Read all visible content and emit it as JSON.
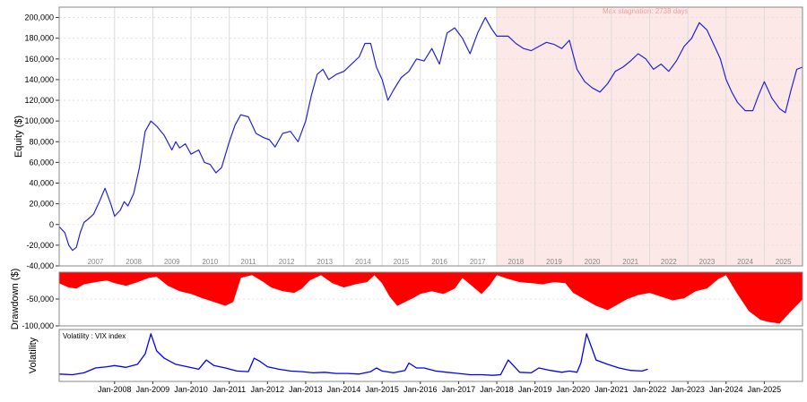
{
  "chart_data": [
    {
      "type": "line",
      "ylabel": "Equity ($)",
      "ylim": [
        -40000,
        210000
      ],
      "yticks": [
        -40000,
        -20000,
        0,
        20000,
        40000,
        60000,
        80000,
        100000,
        120000,
        140000,
        160000,
        180000,
        200000
      ],
      "ytick_labels": [
        "-40,000",
        "-20,000",
        "0",
        "20,000",
        "40,000",
        "60,000",
        "80,000",
        "100,000",
        "120,000",
        "140,000",
        "160,000",
        "180,000",
        "200,000"
      ],
      "year_labels": [
        "2007",
        "2008",
        "2009",
        "2010",
        "2011",
        "2012",
        "2013",
        "2014",
        "2015",
        "2016",
        "2017",
        "2018",
        "2019",
        "2020",
        "2021",
        "2022",
        "2023",
        "2024",
        "2025"
      ],
      "year_label_x": [
        2007.5,
        2008.5,
        2009.5,
        2010.5,
        2011.5,
        2012.5,
        2013.5,
        2014.5,
        2015.5,
        2016.5,
        2017.5,
        2018.5,
        2019.5,
        2020.5,
        2021.5,
        2022.5,
        2023.5,
        2024.5,
        2025.5
      ],
      "grid": true,
      "series": [
        {
          "color": "#2222dd",
          "x": [
            2006.55,
            2006.7,
            2006.8,
            2006.9,
            2007.0,
            2007.1,
            2007.2,
            2007.3,
            2007.45,
            2007.6,
            2007.75,
            2007.9,
            2008.0,
            2008.15,
            2008.25,
            2008.35,
            2008.5,
            2008.65,
            2008.8,
            2008.95,
            2009.1,
            2009.3,
            2009.5,
            2009.6,
            2009.7,
            2009.85,
            2010.0,
            2010.2,
            2010.35,
            2010.5,
            2010.65,
            2010.8,
            2011.0,
            2011.15,
            2011.3,
            2011.5,
            2011.7,
            2011.9,
            2012.05,
            2012.2,
            2012.4,
            2012.6,
            2012.8,
            2013.0,
            2013.15,
            2013.3,
            2013.45,
            2013.6,
            2013.8,
            2014.0,
            2014.2,
            2014.4,
            2014.55,
            2014.7,
            2014.85,
            2015.0,
            2015.15,
            2015.3,
            2015.5,
            2015.7,
            2015.9,
            2016.1,
            2016.3,
            2016.5,
            2016.7,
            2016.9,
            2017.1,
            2017.3,
            2017.5,
            2017.7,
            2017.85,
            2018.0,
            2018.15,
            2018.3,
            2018.5,
            2018.7,
            2018.9,
            2019.1,
            2019.3,
            2019.5,
            2019.7,
            2019.9,
            2020.1,
            2020.3,
            2020.5,
            2020.7,
            2020.9,
            2021.1,
            2021.3,
            2021.5,
            2021.7,
            2021.9,
            2022.1,
            2022.3,
            2022.5,
            2022.7,
            2022.9,
            2023.1,
            2023.3,
            2023.5,
            2023.7,
            2023.85,
            2024.0,
            2024.15,
            2024.3,
            2024.5,
            2024.7,
            2024.85,
            2025.0,
            2025.2,
            2025.4,
            2025.55,
            2025.7,
            2025.85,
            2026.0
          ],
          "y": [
            -2000,
            -8000,
            -20000,
            -25000,
            -22000,
            -8000,
            2000,
            5000,
            10000,
            22000,
            35000,
            20000,
            8000,
            14000,
            22000,
            18000,
            30000,
            55000,
            90000,
            100000,
            95000,
            86000,
            72000,
            80000,
            74000,
            78000,
            68000,
            72000,
            60000,
            58000,
            50000,
            55000,
            80000,
            96000,
            106000,
            104000,
            88000,
            84000,
            82000,
            75000,
            88000,
            90000,
            80000,
            100000,
            125000,
            145000,
            150000,
            140000,
            145000,
            148000,
            155000,
            162000,
            175000,
            175000,
            152000,
            140000,
            120000,
            130000,
            142000,
            148000,
            160000,
            158000,
            170000,
            155000,
            185000,
            190000,
            180000,
            165000,
            185000,
            200000,
            190000,
            182000,
            182000,
            182000,
            175000,
            170000,
            168000,
            172000,
            176000,
            174000,
            170000,
            178000,
            150000,
            138000,
            132000,
            128000,
            136000,
            148000,
            152000,
            158000,
            165000,
            160000,
            150000,
            155000,
            148000,
            158000,
            172000,
            180000,
            195000,
            188000,
            172000,
            160000,
            140000,
            128000,
            118000,
            110000,
            110000,
            125000,
            138000,
            122000,
            112000,
            108000,
            130000,
            150000,
            152000
          ]
        }
      ],
      "annotation": {
        "text": "Max stagnation: 2738 days",
        "x_start": 2018.0,
        "x_end": 2026.0,
        "fill": "#fde8e8"
      }
    },
    {
      "type": "area",
      "ylabel": "Drawdown ($)",
      "ylim": [
        -100000,
        0
      ],
      "yticks": [
        -50000,
        -100000
      ],
      "ytick_labels": [
        "-50,000",
        "-100,000"
      ],
      "series": [
        {
          "color": "#ff0000",
          "x": [
            2006.55,
            2006.8,
            2007.0,
            2007.2,
            2007.5,
            2007.8,
            2008.0,
            2008.3,
            2008.6,
            2008.9,
            2009.1,
            2009.4,
            2009.7,
            2010.0,
            2010.3,
            2010.6,
            2010.9,
            2011.1,
            2011.3,
            2011.6,
            2011.9,
            2012.1,
            2012.4,
            2012.7,
            2012.9,
            2013.1,
            2013.4,
            2013.7,
            2014.0,
            2014.3,
            2014.6,
            2014.8,
            2015.0,
            2015.2,
            2015.4,
            2015.6,
            2015.8,
            2016.0,
            2016.3,
            2016.6,
            2016.9,
            2017.1,
            2017.3,
            2017.6,
            2017.8,
            2018.0,
            2018.3,
            2018.6,
            2018.9,
            2019.2,
            2019.5,
            2019.8,
            2020.0,
            2020.3,
            2020.6,
            2020.9,
            2021.1,
            2021.4,
            2021.7,
            2022.0,
            2022.3,
            2022.6,
            2022.9,
            2023.2,
            2023.5,
            2023.8,
            2024.0,
            2024.3,
            2024.6,
            2024.9,
            2025.1,
            2025.4,
            2025.7,
            2026.0
          ],
          "y": [
            -20000,
            -28000,
            -30000,
            -22000,
            -18000,
            -15000,
            -20000,
            -25000,
            -18000,
            -10000,
            -8000,
            -25000,
            -35000,
            -40000,
            -48000,
            -55000,
            -62000,
            -55000,
            -10000,
            -5000,
            -18000,
            -28000,
            -35000,
            -38000,
            -30000,
            -15000,
            -5000,
            -20000,
            -28000,
            -22000,
            -18000,
            -5000,
            -20000,
            -45000,
            -62000,
            -55000,
            -48000,
            -40000,
            -35000,
            -40000,
            -30000,
            -10000,
            -22000,
            -40000,
            -25000,
            -5000,
            -12000,
            -18000,
            -20000,
            -22000,
            -18000,
            -20000,
            -38000,
            -50000,
            -62000,
            -70000,
            -62000,
            -50000,
            -42000,
            -38000,
            -45000,
            -52000,
            -48000,
            -35000,
            -30000,
            -12000,
            -5000,
            -40000,
            -72000,
            -88000,
            -92000,
            -95000,
            -72000,
            -50000
          ]
        }
      ]
    },
    {
      "type": "line",
      "ylabel": "Volatility",
      "title": "Volatility : VIX index",
      "ylim": [
        0,
        85
      ],
      "xtick_labels": [
        "Jan-2008",
        "Jan-2009",
        "Jan-2010",
        "Jan-2011",
        "Jan-2012",
        "Jan-2013",
        "Jan-2014",
        "Jan-2015",
        "Jan-2016",
        "Jan-2017",
        "Jan-2018",
        "Jan-2019",
        "Jan-2020",
        "Jan-2021",
        "Jan-2022",
        "Jan-2023",
        "Jan-2024",
        "Jan-2025"
      ],
      "xticks": [
        2008,
        2009,
        2010,
        2011,
        2012,
        2013,
        2014,
        2015,
        2016,
        2017,
        2018,
        2019,
        2020,
        2021,
        2022,
        2023,
        2024,
        2025
      ],
      "series": [
        {
          "color": "#0000ff",
          "x": [
            2006.55,
            2006.9,
            2007.2,
            2007.5,
            2007.8,
            2008.0,
            2008.3,
            2008.6,
            2008.8,
            2008.95,
            2009.1,
            2009.3,
            2009.6,
            2009.9,
            2010.2,
            2010.4,
            2010.6,
            2010.9,
            2011.2,
            2011.5,
            2011.65,
            2011.8,
            2012.0,
            2012.3,
            2012.6,
            2012.9,
            2013.2,
            2013.5,
            2013.8,
            2014.1,
            2014.4,
            2014.7,
            2014.85,
            2015.0,
            2015.3,
            2015.6,
            2015.7,
            2015.9,
            2016.1,
            2016.4,
            2016.7,
            2017.0,
            2017.3,
            2017.6,
            2017.9,
            2018.1,
            2018.3,
            2018.6,
            2018.9,
            2019.1,
            2019.4,
            2019.7,
            2019.9,
            2020.1,
            2020.2,
            2020.35,
            2020.6,
            2020.9,
            2021.2,
            2021.5,
            2021.8,
            2021.95
          ],
          "y": [
            12,
            11,
            14,
            22,
            24,
            26,
            23,
            28,
            45,
            78,
            50,
            38,
            28,
            24,
            20,
            35,
            26,
            22,
            17,
            16,
            38,
            33,
            24,
            20,
            17,
            16,
            14,
            15,
            13,
            13,
            12,
            16,
            22,
            17,
            14,
            18,
            30,
            22,
            22,
            17,
            15,
            13,
            11,
            11,
            10,
            11,
            35,
            15,
            14,
            22,
            18,
            15,
            17,
            15,
            30,
            78,
            35,
            28,
            22,
            18,
            17,
            20
          ]
        }
      ]
    }
  ]
}
